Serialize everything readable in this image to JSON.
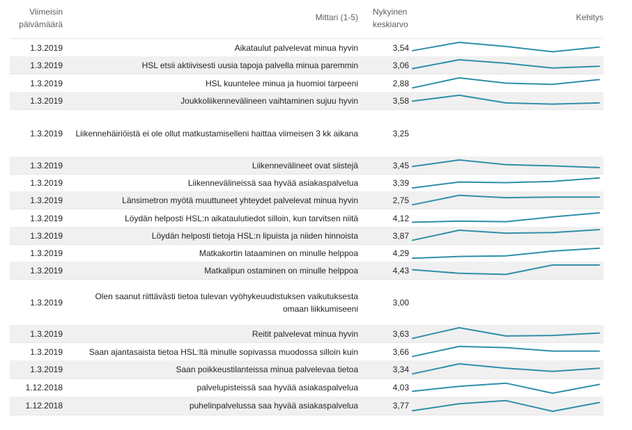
{
  "header": {
    "date_label_1": "Viimeisin",
    "date_label_2": "päivämäärä",
    "measure_label": "Mittari (1-5)",
    "avg_label_1": "Nykyinen",
    "avg_label_2": "keskiarvo",
    "trend_label": "Kehitys"
  },
  "colors": {
    "sparkline": "#2f8fa8",
    "alt_row": "#f0f0f0"
  },
  "rows": [
    {
      "date": "1.3.2019",
      "measure": "Aikataulut palvelevat minua hyvin",
      "avg": "3,54",
      "trend": [
        0.25,
        0.95,
        0.6,
        0.15,
        0.55
      ]
    },
    {
      "date": "1.3.2019",
      "measure": "HSL etsii aktiivisesti uusia tapoja palvella minua paremmin",
      "avg": "3,06",
      "trend": [
        0.2,
        0.95,
        0.65,
        0.25,
        0.4
      ]
    },
    {
      "date": "1.3.2019",
      "measure": "HSL kuuntelee minua ja huomioi tarpeeni",
      "avg": "2,88",
      "trend": [
        0.1,
        0.95,
        0.5,
        0.4,
        0.8
      ]
    },
    {
      "date": "1.3.2019",
      "measure": "Joukkoliikennevälineen vaihtaminen sujuu hyvin",
      "avg": "3,58",
      "trend": [
        0.45,
        0.95,
        0.3,
        0.2,
        0.3
      ]
    },
    {
      "date": "1.3.2019",
      "measure": "Liikennehäiriöistä ei ole ollut matkustamiselleni haittaa viimeisen 3 kk aikana",
      "avg": "3,25",
      "trend": []
    },
    {
      "date": "1.3.2019",
      "measure": "Liikennevälineet ovat siistejä",
      "avg": "3,45",
      "trend": [
        0.4,
        0.95,
        0.55,
        0.45,
        0.3
      ]
    },
    {
      "date": "1.3.2019",
      "measure": "Liikennevälineissä saa hyvää asiakaspalvelua",
      "avg": "3,39",
      "trend": [
        0.05,
        0.55,
        0.5,
        0.6,
        0.9
      ]
    },
    {
      "date": "1.3.2019",
      "measure": "Länsimetron myötä muuttuneet yhteydet palvelevat minua hyvin",
      "avg": "2,75",
      "trend": [
        0.1,
        0.9,
        0.7,
        0.75,
        0.75
      ]
    },
    {
      "date": "1.3.2019",
      "measure": "Löydän helposti HSL:n aikataulutiedot silloin, kun tarvitsen niitä",
      "avg": "4,12",
      "trend": [
        0.15,
        0.25,
        0.2,
        0.6,
        0.95
      ]
    },
    {
      "date": "1.3.2019",
      "measure": "Löydän helposti tietoja HSL:n lipuista ja niiden hinnoista",
      "avg": "3,87",
      "trend": [
        0.1,
        0.95,
        0.7,
        0.75,
        1.0
      ]
    },
    {
      "date": "1.3.2019",
      "measure": "Matkakortin lataaminen on minulle helppoa",
      "avg": "4,29",
      "trend": [
        0.05,
        0.2,
        0.25,
        0.65,
        0.9
      ]
    },
    {
      "date": "1.3.2019",
      "measure": "Matkalipun ostaminen on minulle helppoa",
      "avg": "4,43",
      "trend": [
        0.55,
        0.25,
        0.15,
        0.95,
        0.95
      ]
    },
    {
      "date": "1.3.2019",
      "measure": "Olen saanut riittävästi tietoa tulevan vyöhykeuudistuksen vaikutuksesta omaan liikkumiseeni",
      "avg": "3,00",
      "trend": []
    },
    {
      "date": "1.3.2019",
      "measure": "Reitit palvelevat minua hyvin",
      "avg": "3,63",
      "trend": [
        0.1,
        1.0,
        0.3,
        0.35,
        0.55
      ]
    },
    {
      "date": "1.3.2019",
      "measure": "Saan ajantasaista tietoa HSL:ltä minulle sopivassa muodossa silloin kuin",
      "avg": "3,66",
      "trend": [
        0.1,
        0.95,
        0.85,
        0.55,
        0.55
      ]
    },
    {
      "date": "1.3.2019",
      "measure": "Saan poikkeustilanteissa minua palvelevaa tietoa",
      "avg": "3,34",
      "trend": [
        0.15,
        0.95,
        0.6,
        0.35,
        0.6
      ]
    },
    {
      "date": "1.12.2018",
      "measure": "palvelupisteissä saa hyvää asiakaspalvelua",
      "avg": "4,03",
      "trend": [
        0.2,
        0.6,
        0.85,
        0.05,
        0.75
      ]
    },
    {
      "date": "1.12.2018",
      "measure": "puhelinpalvelussa saa hyvää asiakaspalvelua",
      "avg": "3,77",
      "trend": [
        0.1,
        0.65,
        0.9,
        0.05,
        0.75
      ]
    }
  ]
}
